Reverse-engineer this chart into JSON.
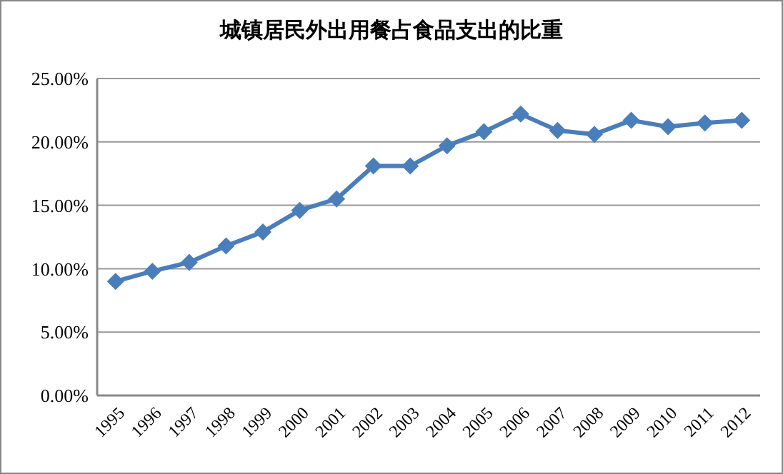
{
  "chart_data": {
    "type": "line",
    "title": "城镇居民外出用餐占食品支出的比重",
    "categories": [
      "1995",
      "1996",
      "1997",
      "1998",
      "1999",
      "2000",
      "2001",
      "2002",
      "2003",
      "2004",
      "2005",
      "2006",
      "2007",
      "2008",
      "2009",
      "2010",
      "2011",
      "2012"
    ],
    "series": [
      {
        "color": "#4a7ebb",
        "values": [
          9.0,
          9.8,
          10.5,
          11.8,
          12.9,
          14.6,
          15.5,
          18.1,
          18.1,
          19.7,
          20.8,
          22.2,
          20.9,
          20.6,
          21.7,
          21.2,
          21.5,
          21.7
        ]
      }
    ],
    "ylim": [
      0,
      25
    ],
    "yticks": [
      {
        "value": 0,
        "label": "0.00%"
      },
      {
        "value": 5,
        "label": "5.00%"
      },
      {
        "value": 10,
        "label": "10.00%"
      },
      {
        "value": 15,
        "label": "15.00%"
      },
      {
        "value": 20,
        "label": "20.00%"
      },
      {
        "value": 25,
        "label": "25.00%"
      }
    ],
    "grid": "y",
    "marker": "diamond",
    "line_style": "solid"
  }
}
